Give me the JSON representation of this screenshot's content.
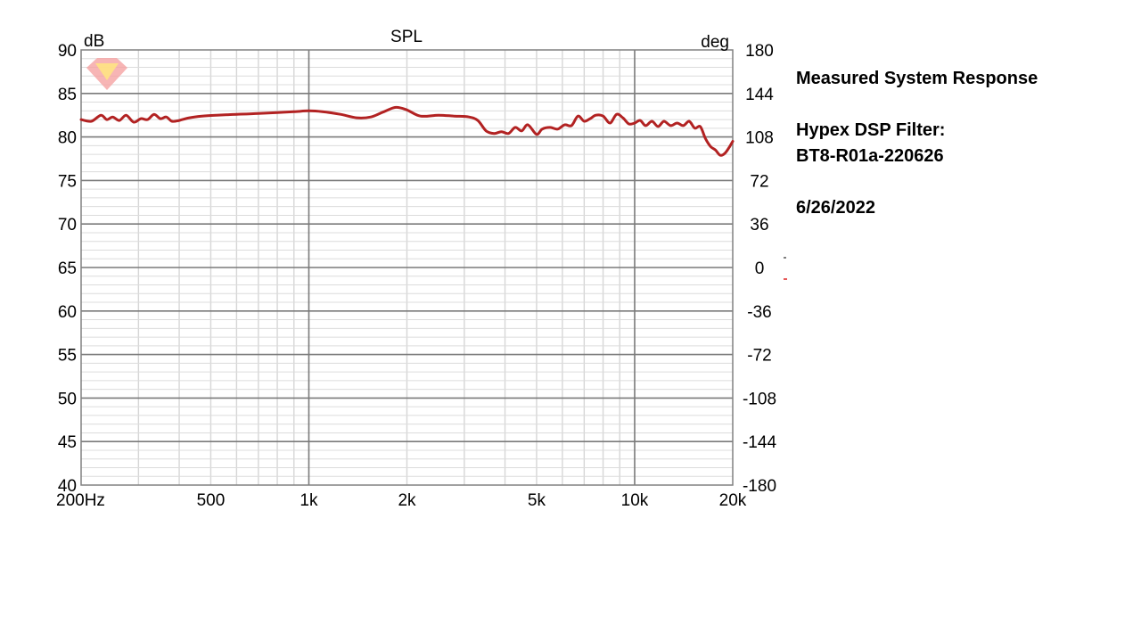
{
  "chart_data": {
    "type": "line",
    "title": "SPL",
    "y_unit_left": "dB",
    "y_unit_right": "deg",
    "x_scale": "log",
    "xlim": [
      200,
      20000
    ],
    "ylim": [
      40,
      90
    ],
    "ylim_right": [
      -180,
      180
    ],
    "x_ticks": [
      {
        "value": 200,
        "label": "200Hz"
      },
      {
        "value": 500,
        "label": "500"
      },
      {
        "value": 1000,
        "label": "1k"
      },
      {
        "value": 2000,
        "label": "2k"
      },
      {
        "value": 5000,
        "label": "5k"
      },
      {
        "value": 10000,
        "label": "10k"
      },
      {
        "value": 20000,
        "label": "20k"
      }
    ],
    "y_ticks_left": [
      "90",
      "85",
      "80",
      "75",
      "70",
      "65",
      "60",
      "55",
      "50",
      "45",
      "40"
    ],
    "y_ticks_right": [
      "180",
      "144",
      "108",
      "72",
      "36",
      "0",
      "-36",
      "-72",
      "-108",
      "-144",
      "-180"
    ],
    "grid": true,
    "series": [
      {
        "color": "#b22222",
        "x": [
          200,
          215,
          230,
          240,
          250,
          262,
          275,
          290,
          305,
          320,
          335,
          350,
          365,
          380,
          400,
          430,
          470,
          520,
          600,
          700,
          800,
          900,
          1000,
          1100,
          1250,
          1400,
          1550,
          1700,
          1850,
          2000,
          2200,
          2500,
          2800,
          3100,
          3300,
          3500,
          3700,
          3900,
          4100,
          4300,
          4500,
          4700,
          5000,
          5200,
          5500,
          5800,
          6100,
          6400,
          6700,
          7000,
          7300,
          7600,
          8000,
          8400,
          8800,
          9200,
          9600,
          10000,
          10400,
          10800,
          11300,
          11800,
          12300,
          12900,
          13500,
          14100,
          14700,
          15300,
          15900,
          16500,
          17100,
          17700,
          18300,
          18900,
          19500,
          20000
        ],
        "y": [
          82.0,
          81.8,
          82.5,
          82.0,
          82.3,
          81.9,
          82.5,
          81.7,
          82.1,
          82.0,
          82.6,
          82.1,
          82.3,
          81.8,
          81.9,
          82.2,
          82.4,
          82.5,
          82.6,
          82.7,
          82.8,
          82.9,
          83.0,
          82.9,
          82.6,
          82.2,
          82.3,
          82.9,
          83.4,
          83.1,
          82.4,
          82.5,
          82.4,
          82.3,
          81.9,
          80.7,
          80.4,
          80.6,
          80.4,
          81.1,
          80.7,
          81.4,
          80.3,
          80.9,
          81.1,
          80.9,
          81.4,
          81.3,
          82.4,
          81.8,
          82.1,
          82.5,
          82.4,
          81.6,
          82.6,
          82.2,
          81.5,
          81.6,
          81.9,
          81.3,
          81.8,
          81.2,
          81.8,
          81.3,
          81.6,
          81.3,
          81.8,
          81.0,
          81.2,
          79.8,
          78.9,
          78.5,
          77.9,
          78.1,
          78.8,
          79.5
        ]
      }
    ]
  },
  "notes": {
    "heading": "Measured System Response",
    "filter_label": "Hypex DSP Filter:",
    "filter_name": "BT8-R01a-220626",
    "date": "6/26/2022"
  }
}
